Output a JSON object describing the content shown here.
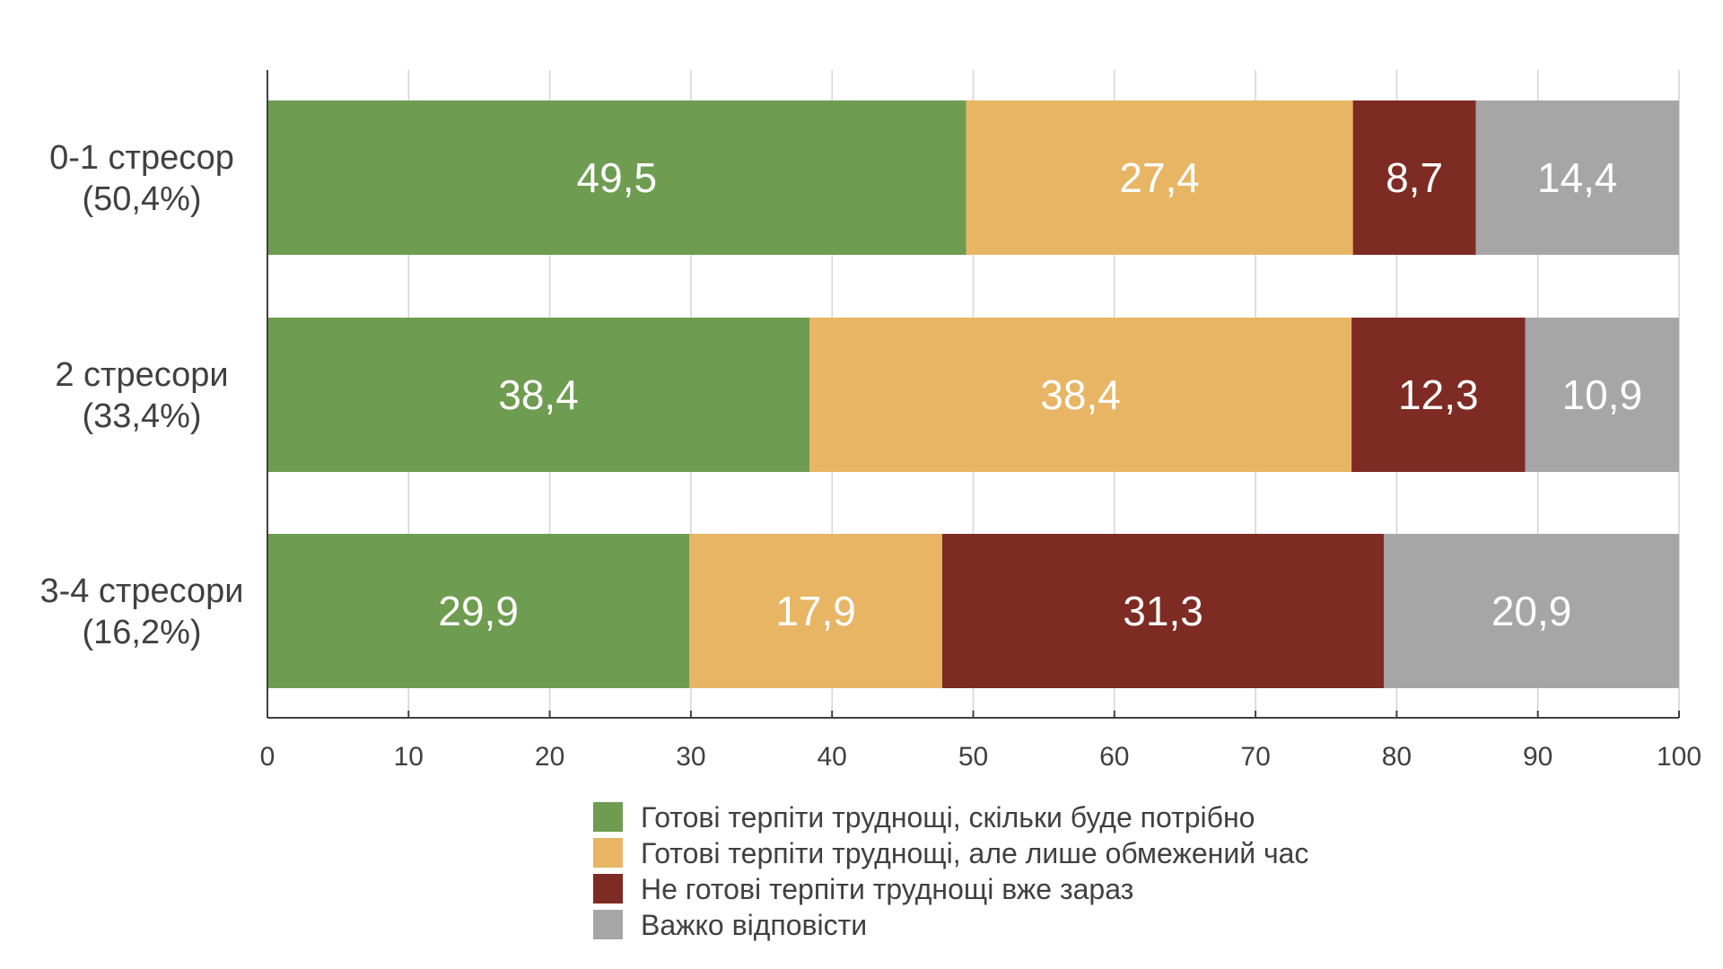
{
  "chart_data": {
    "type": "bar",
    "orientation": "horizontal",
    "stacked": true,
    "title": "",
    "xlabel": "",
    "ylabel": "",
    "xlim": [
      0,
      100
    ],
    "xticks": [
      0,
      10,
      20,
      30,
      40,
      50,
      60,
      70,
      80,
      90,
      100
    ],
    "grid": true,
    "legend_position": "bottom",
    "categories": [
      [
        "0-1 стресор",
        "(50,4%)"
      ],
      [
        "2 стресори",
        "(33,4%)"
      ],
      [
        "3-4 стресори",
        "(16,2%)"
      ]
    ],
    "series": [
      {
        "name": "Готові терпіти труднощі, скільки буде потрібно",
        "color": "#6e9c50",
        "values": [
          49.5,
          38.4,
          29.9
        ],
        "labels": [
          "49,5",
          "38,4",
          "29,9"
        ]
      },
      {
        "name": "Готові терпіти труднощі, але лише обмежений час",
        "color": "#e8b565",
        "values": [
          27.4,
          38.4,
          17.9
        ],
        "labels": [
          "27,4",
          "38,4",
          "17,9"
        ]
      },
      {
        "name": "Не готові терпіти труднощі вже зараз",
        "color": "#7e2b23",
        "values": [
          8.7,
          12.3,
          31.3
        ],
        "labels": [
          "8,7",
          "12,3",
          "31,3"
        ]
      },
      {
        "name": "Важко відповісти",
        "color": "#a6a6a6",
        "values": [
          14.4,
          10.9,
          20.9
        ],
        "labels": [
          "14,4",
          "10,9",
          "20,9"
        ]
      }
    ]
  }
}
